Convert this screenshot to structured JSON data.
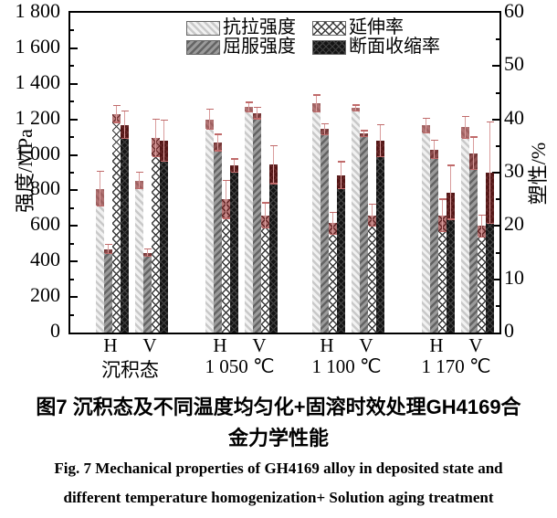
{
  "figure": {
    "caption_zh_line1": "图7  沉积态及不同温度均匀化+固溶时效处理GH4169合",
    "caption_zh_line2": "金力学性能",
    "caption_en_line1": "Fig. 7  Mechanical properties of GH4169 alloy in deposited state and",
    "caption_en_line2": "different temperature homogenization+ Solution aging treatment"
  },
  "chart_data": {
    "type": "bar",
    "title": "",
    "grid": false,
    "legend_position": "top-center",
    "error_bar_color": "#c06a6a",
    "left_axis": {
      "label": "强度/MPa",
      "min": 0,
      "max": 1800,
      "major_step": 200,
      "minor_step": 100,
      "tick_labels": [
        "0",
        "200",
        "400",
        "600",
        "800",
        "1 000",
        "1 200",
        "1 400",
        "1 600",
        "1 800"
      ]
    },
    "right_axis": {
      "label": "塑性/%",
      "min": 0,
      "max": 60,
      "major_step": 10,
      "minor_step": 5,
      "tick_labels": [
        "0",
        "10",
        "20",
        "30",
        "40",
        "50",
        "60"
      ]
    },
    "series": [
      {
        "key": "tensile",
        "name": "抗拉强度",
        "axis": "left",
        "pattern": "p-tensile"
      },
      {
        "key": "yield",
        "name": "屈服强度",
        "axis": "left",
        "pattern": "p-yield"
      },
      {
        "key": "elongation",
        "name": "延伸率",
        "axis": "right",
        "pattern": "p-elongation"
      },
      {
        "key": "reduction",
        "name": "断面收缩率",
        "axis": "right",
        "pattern": "p-reduction"
      }
    ],
    "groups": [
      {
        "label": "沉积态",
        "bars": [
          {
            "label": "H",
            "tensile": 810,
            "tensile_err": 95,
            "yield": 470,
            "yield_err": 25,
            "elongation": 41,
            "elongation_err": 1.5,
            "reduction": 39,
            "reduction_err": 2.5
          },
          {
            "label": "V",
            "tensile": 855,
            "tensile_err": 45,
            "yield": 450,
            "yield_err": 20,
            "elongation": 36.5,
            "elongation_err": 3.5,
            "reduction": 36,
            "reduction_err": 3.8
          }
        ]
      },
      {
        "label": "1 050 ℃",
        "bars": [
          {
            "label": "H",
            "tensile": 1200,
            "tensile_err": 55,
            "yield": 1070,
            "yield_err": 45,
            "elongation": 25,
            "elongation_err": 3.5,
            "reduction": 31.3,
            "reduction_err": 1.2
          },
          {
            "label": "V",
            "tensile": 1270,
            "tensile_err": 25,
            "yield": 1235,
            "yield_err": 30,
            "elongation": 22,
            "elongation_err": 2.3,
            "reduction": 31.5,
            "reduction_err": 3.5
          }
        ]
      },
      {
        "label": "1 100 ℃",
        "bars": [
          {
            "label": "H",
            "tensile": 1290,
            "tensile_err": 45,
            "yield": 1145,
            "yield_err": 30,
            "elongation": 20.5,
            "elongation_err": 2,
            "reduction": 29.5,
            "reduction_err": 2.5
          },
          {
            "label": "V",
            "tensile": 1265,
            "tensile_err": 15,
            "yield": 1120,
            "yield_err": 15,
            "elongation": 22,
            "elongation_err": 2,
            "reduction": 36,
            "reduction_err": 3
          }
        ]
      },
      {
        "label": "1 170 ℃",
        "bars": [
          {
            "label": "H",
            "tensile": 1165,
            "tensile_err": 40,
            "yield": 1030,
            "yield_err": 50,
            "elongation": 22,
            "elongation_err": 3,
            "reduction": 26.3,
            "reduction_err": 5
          },
          {
            "label": "V",
            "tensile": 1155,
            "tensile_err": 60,
            "yield": 1010,
            "yield_err": 90,
            "elongation": 20,
            "elongation_err": 2,
            "reduction": 30,
            "reduction_err": 9.5
          }
        ]
      }
    ]
  }
}
